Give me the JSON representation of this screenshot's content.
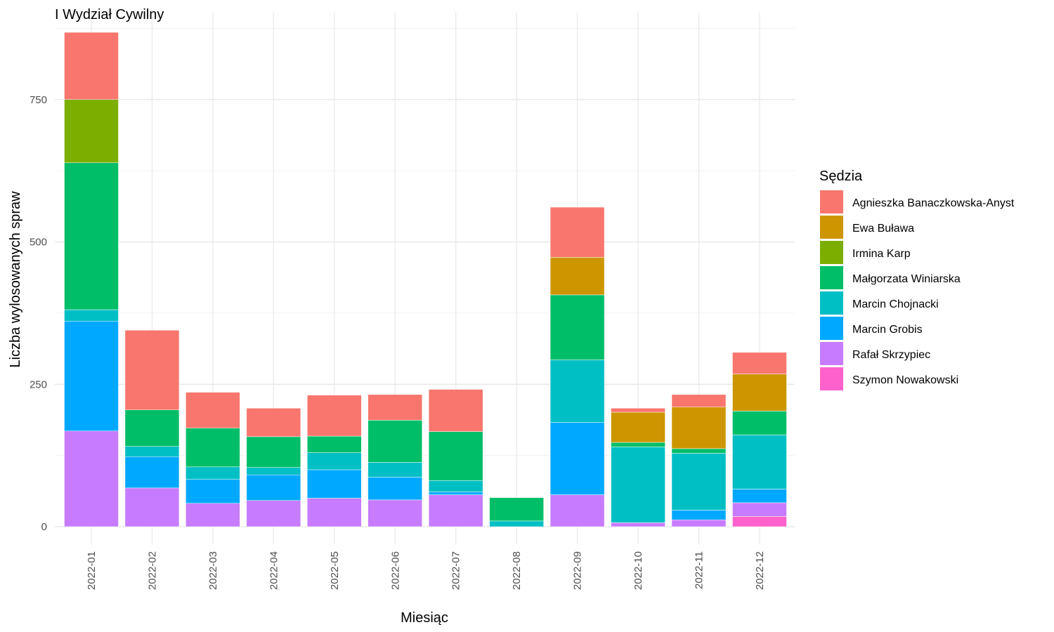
{
  "chart_data": {
    "type": "bar",
    "stacked": true,
    "title": "I Wydział Cywilny",
    "xlabel": "Miesiąc",
    "ylabel": "Liczba wylosowanych spraw",
    "ylim": [
      0,
      900
    ],
    "yticks": [
      0,
      250,
      500,
      750
    ],
    "grid": true,
    "legend_title": "Sędzia",
    "legend_position": "right",
    "categories": [
      "2022-01",
      "2022-02",
      "2022-03",
      "2022-04",
      "2022-05",
      "2022-06",
      "2022-07",
      "2022-08",
      "2022-09",
      "2022-10",
      "2022-11",
      "2022-12"
    ],
    "series": [
      {
        "name": "Agnieszka Banaczkowska-Anyst",
        "color": "#F8766D",
        "values": [
          118,
          140,
          63,
          50,
          72,
          45,
          74,
          0,
          88,
          7,
          22,
          38
        ]
      },
      {
        "name": "Ewa Buława",
        "color": "#CD9600",
        "values": [
          0,
          0,
          0,
          0,
          0,
          0,
          0,
          0,
          66,
          53,
          73,
          65
        ]
      },
      {
        "name": "Irmina Karp",
        "color": "#7CAE00",
        "values": [
          111,
          0,
          0,
          0,
          0,
          0,
          0,
          0,
          0,
          0,
          0,
          0
        ]
      },
      {
        "name": "Małgorzata Winiarska",
        "color": "#00BE67",
        "values": [
          258,
          64,
          68,
          54,
          29,
          74,
          86,
          41,
          114,
          8,
          8,
          42
        ]
      },
      {
        "name": "Marcin Chojnacki",
        "color": "#00BFC4",
        "values": [
          20,
          18,
          22,
          13,
          30,
          26,
          20,
          10,
          110,
          133,
          100,
          95
        ]
      },
      {
        "name": "Marcin Grobis",
        "color": "#00A9FF",
        "values": [
          193,
          55,
          42,
          45,
          50,
          40,
          5,
          0,
          127,
          0,
          17,
          24
        ]
      },
      {
        "name": "Rafał Skrzypiec",
        "color": "#C77CFF",
        "values": [
          168,
          68,
          41,
          46,
          50,
          47,
          56,
          0,
          56,
          7,
          12,
          24
        ]
      },
      {
        "name": "Szymon Nowakowski",
        "color": "#FF61CC",
        "values": [
          0,
          0,
          0,
          0,
          0,
          0,
          0,
          0,
          0,
          0,
          0,
          18
        ]
      }
    ]
  }
}
